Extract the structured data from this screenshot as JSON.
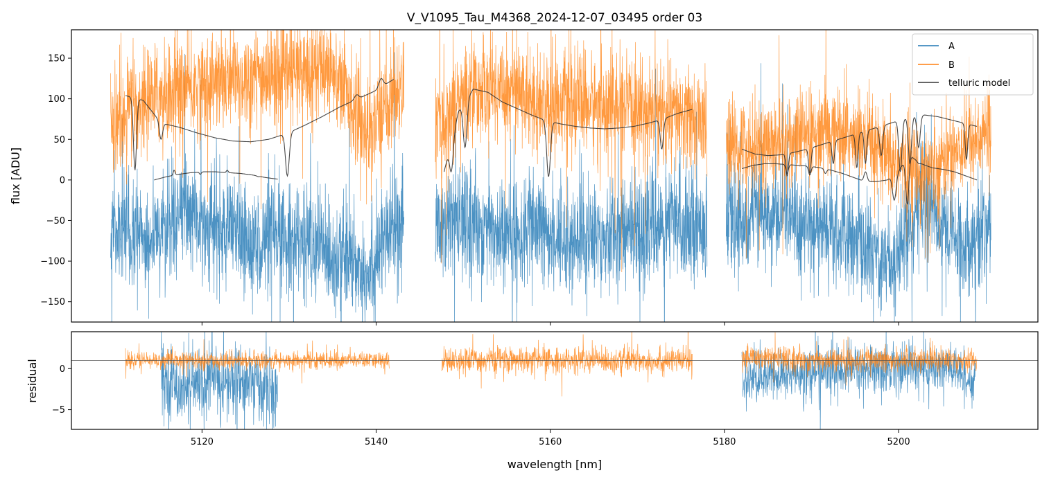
{
  "chart_data": [
    {
      "type": "line",
      "title": "V_V1095_Tau_M4368_2024-12-07_03495  order 03",
      "xlabel": "",
      "ylabel": "flux [ADU]",
      "xlim": [
        5105,
        5216
      ],
      "ylim": [
        -175,
        185
      ],
      "y_ticks": [
        -150,
        -100,
        -50,
        0,
        50,
        100,
        150
      ],
      "x_ticks": [
        5120,
        5140,
        5160,
        5180,
        5200
      ],
      "legend": {
        "position": "top-right",
        "entries": [
          "A",
          "B",
          "telluric model"
        ]
      },
      "series": [
        {
          "name": "A",
          "color": "#1f77b4",
          "kind": "noisy",
          "segments": [
            {
              "x": [
                5109.5,
                5143.2
              ],
              "base": [
                -60,
                -75,
                -40,
                -65,
                -80,
                -70,
                -90,
                -110,
                -40
              ],
              "noise": 60
            },
            {
              "x": [
                5146.8,
                5178.0
              ],
              "base": [
                -60,
                -50,
                -70,
                -60,
                -75,
                -65,
                -60,
                -55,
                -50
              ],
              "noise": 60
            },
            {
              "x": [
                5180.2,
                5210.6
              ],
              "base": [
                -60,
                -40,
                -50,
                -60,
                -80,
                -100,
                -20,
                -80,
                -60
              ],
              "noise": 55
            }
          ]
        },
        {
          "name": "B",
          "color": "#ff7f0e",
          "kind": "noisy",
          "segments": [
            {
              "x": [
                5109.5,
                5143.2
              ],
              "base": [
                70,
                100,
                110,
                120,
                125,
                130,
                140,
                60,
                120
              ],
              "noise": 55
            },
            {
              "x": [
                5146.8,
                5178.0
              ],
              "base": [
                60,
                110,
                115,
                100,
                95,
                90,
                85,
                80,
                70
              ],
              "noise": 55
            },
            {
              "x": [
                5180.2,
                5210.6
              ],
              "base": [
                40,
                45,
                50,
                60,
                50,
                20,
                10,
                40,
                60
              ],
              "noise": 50
            }
          ]
        },
        {
          "name": "telluric model",
          "color": "#333333",
          "kind": "model",
          "segments": [
            {
              "x": [
                5111.2,
                5142.0
              ],
              "base": [
                104,
                98,
                70,
                65,
                58,
                52,
                48,
                47,
                50,
                57,
                67,
                78,
                90,
                100,
                110,
                124
              ],
              "dips": [
                [
                  5112.3,
                  12,
                  0.25
                ],
                [
                  5115.3,
                  50,
                  0.25
                ],
                [
                  5129.8,
                  5,
                  0.3
                ],
                [
                  5137.8,
                  105,
                  0.35
                ],
                [
                  5140.6,
                  125,
                  0.35
                ]
              ]
            },
            {
              "x": [
                5114.5,
                5128.7
              ],
              "base": [
                0,
                4,
                7,
                9,
                10,
                10,
                9,
                8,
                6,
                3,
                1
              ],
              "dips": [
                [
                  5116.8,
                  12,
                  0.15
                ],
                [
                  5119.8,
                  7,
                  0.15
                ],
                [
                  5122.9,
                  12,
                  0.15
                ],
                [
                  5126.5,
                  4,
                  0.2
                ]
              ]
            },
            {
              "x": [
                5147.8,
                5176.3
              ],
              "base": [
                10,
                85,
                112,
                108,
                96,
                88,
                80,
                73,
                69,
                66,
                64,
                63,
                64,
                66,
                70,
                75,
                82,
                87
              ],
              "dips": [
                [
                  5148.6,
                  10,
                  0.3
                ],
                [
                  5150.2,
                  40,
                  0.3
                ],
                [
                  5159.8,
                  4,
                  0.3
                ],
                [
                  5172.8,
                  38,
                  0.25
                ]
              ]
            },
            {
              "x": [
                5182.0,
                5209.0
              ],
              "base": [
                38,
                32,
                30,
                31,
                34,
                38,
                43,
                48,
                53,
                58,
                63,
                68,
                73,
                78,
                80,
                78,
                74,
                70,
                66
              ],
              "dips": [
                [
                  5187.2,
                  5,
                  0.2
                ],
                [
                  5189.8,
                  8,
                  0.2
                ],
                [
                  5192.5,
                  20,
                  0.2
                ],
                [
                  5195.2,
                  15,
                  0.2
                ],
                [
                  5196.2,
                  20,
                  0.2
                ],
                [
                  5198.0,
                  30,
                  0.25
                ],
                [
                  5200.2,
                  10,
                  0.25
                ],
                [
                  5201.3,
                  20,
                  0.25
                ],
                [
                  5202.3,
                  40,
                  0.25
                ],
                [
                  5207.8,
                  25,
                  0.2
                ]
              ]
            },
            {
              "x": [
                5182.0,
                5209.0
              ],
              "base": [
                14,
                18,
                20,
                20,
                19,
                18,
                17,
                15,
                12,
                8,
                3,
                -2,
                -2,
                0,
                12,
                30,
                20,
                15,
                13,
                10,
                5,
                0
              ],
              "dips": [
                [
                  5187.2,
                  8,
                  0.2
                ],
                [
                  5189.8,
                  6,
                  0.2
                ],
                [
                  5191.6,
                  8,
                  0.2
                ],
                [
                  5196.2,
                  10,
                  0.25
                ],
                [
                  5199.5,
                  -25,
                  0.3
                ],
                [
                  5201.0,
                  -30,
                  0.25
                ],
                [
                  5202.4,
                  20,
                  0.25
                ]
              ]
            }
          ]
        }
      ]
    },
    {
      "type": "line",
      "title": "",
      "xlabel": "wavelength [nm]",
      "ylabel": "residual",
      "xlim": [
        5105,
        5216
      ],
      "ylim": [
        -7.4,
        4.5
      ],
      "y_ticks": [
        -5,
        0
      ],
      "x_ticks": [
        5120,
        5140,
        5160,
        5180,
        5200
      ],
      "reference_line": 1.0,
      "series": [
        {
          "name": "A",
          "color": "#1f77b4",
          "kind": "noisy",
          "segments": [
            {
              "x": [
                5115.3,
                5128.7
              ],
              "base": [
                -1,
                -2,
                -2.2,
                -1.5,
                -1.8,
                -1.5,
                -2,
                -3.5
              ],
              "noise": 4.0
            },
            {
              "x": [
                5182.0,
                5208.8
              ],
              "base": [
                -1.5,
                -1.0,
                -0.5,
                -0.3,
                -0.1,
                0.1,
                0.2,
                0.0,
                -1.5
              ],
              "noise": 2.8
            }
          ]
        },
        {
          "name": "B",
          "color": "#ff7f0e",
          "kind": "noisy",
          "segments": [
            {
              "x": [
                5111.2,
                5141.5
              ],
              "base": [
                1,
                1,
                1,
                1,
                1,
                1,
                1,
                1
              ],
              "noise": 0.9
            },
            {
              "x": [
                5147.5,
                5176.3
              ],
              "base": [
                1,
                1,
                1,
                1,
                1,
                1,
                1,
                1
              ],
              "noise": 1.4
            },
            {
              "x": [
                5182.0,
                5209.0
              ],
              "base": [
                1.5,
                1.2,
                1.0,
                1.0,
                1.0,
                1.1,
                1.1,
                1.1
              ],
              "noise": 1.3
            }
          ]
        }
      ]
    }
  ]
}
